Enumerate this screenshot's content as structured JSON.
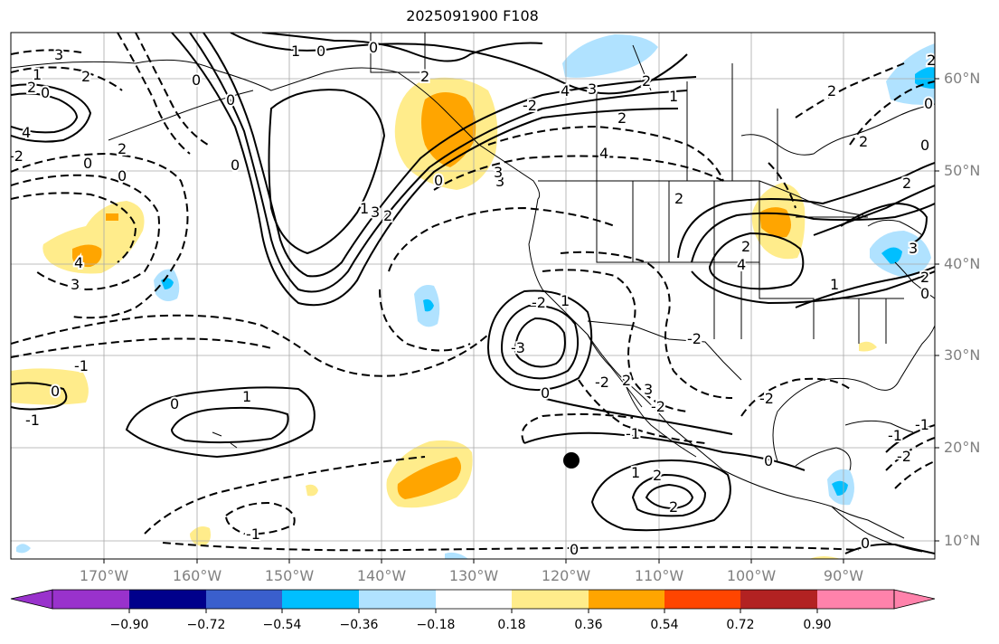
{
  "title": "2025091900 F108",
  "lat_labels": [
    "60°N",
    "50°N",
    "40°N",
    "30°N",
    "20°N",
    "10°N"
  ],
  "lon_labels": [
    "170°W",
    "160°W",
    "150°W",
    "140°W",
    "130°W",
    "120°W",
    "110°W",
    "100°W",
    "90°W"
  ],
  "colorbar": {
    "levels": [
      "−0.90",
      "−0.72",
      "−0.54",
      "−0.36",
      "−0.18",
      "0.18",
      "0.36",
      "0.54",
      "0.72",
      "0.90"
    ],
    "colors": [
      "#9932cc",
      "#00008b",
      "#3a5fcd",
      "#00bfff",
      "#b0e2ff",
      "#ffffff",
      "#ffec8b",
      "#ffa500",
      "#ff4500",
      "#b22222",
      "#ff82ab"
    ]
  },
  "contour_labels": [
    "3",
    "2",
    "2",
    "1",
    "0",
    "0",
    "4",
    "2",
    "0",
    "0",
    "1",
    "2",
    "0",
    "-2",
    "0",
    "2",
    "4",
    "3",
    "2",
    "1",
    "3",
    "4",
    "3",
    "2",
    "2",
    "2",
    "4",
    "-2",
    "2",
    "0",
    "3",
    "4",
    "3",
    "2",
    "-3",
    "-2",
    "1",
    "0",
    "2",
    "3",
    "0",
    "0",
    "-1",
    "-2",
    "-2",
    "-1",
    "0",
    "-1",
    "1",
    "0",
    "1",
    "2",
    "2",
    "-1",
    "0",
    "-1",
    "-2",
    "-2",
    "-1",
    "2",
    "0",
    "1",
    "0",
    "2",
    "0",
    "0",
    "3",
    "2",
    "-2",
    "1",
    "0"
  ],
  "marker": "●"
}
